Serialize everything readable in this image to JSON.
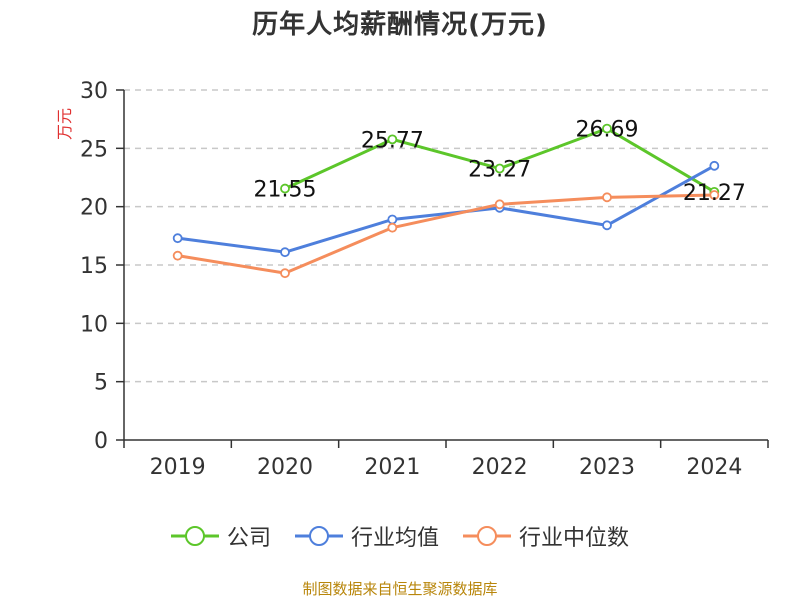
{
  "title": "历年人均薪酬情况(万元)",
  "source": "制图数据来自恒生聚源数据库",
  "chart_data": {
    "type": "line",
    "title": "历年人均薪酬情况(万元)",
    "ylabel": "万元",
    "xlabel": "",
    "ylim": [
      0,
      30
    ],
    "yticks": [
      0,
      5,
      10,
      15,
      20,
      25,
      30
    ],
    "categories": [
      "2019",
      "2020",
      "2021",
      "2022",
      "2023",
      "2024"
    ],
    "series": [
      {
        "name": "公司",
        "color": "#5cc62a",
        "values": [
          null,
          21.55,
          25.77,
          23.27,
          26.69,
          21.27
        ],
        "labels": [
          "",
          "21.55",
          "25.77",
          "23.27",
          "26.69",
          "21.27"
        ]
      },
      {
        "name": "行业均值",
        "color": "#4e7fdc",
        "values": [
          17.3,
          16.1,
          18.9,
          19.9,
          18.4,
          23.5
        ]
      },
      {
        "name": "行业中位数",
        "color": "#f58d5c",
        "values": [
          15.8,
          14.3,
          18.2,
          20.2,
          20.8,
          21.0
        ]
      }
    ],
    "grid": true,
    "legend": "bottom"
  }
}
